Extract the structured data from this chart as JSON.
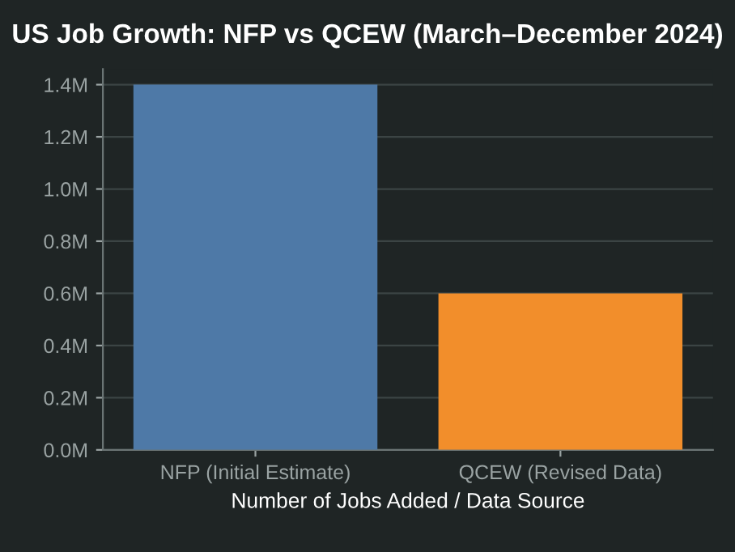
{
  "chart_data": {
    "type": "bar",
    "title": "US Job Growth: NFP vs QCEW (March–December 2024)",
    "xlabel": "Number of Jobs Added / Data Source",
    "categories": [
      "NFP (Initial Estimate)",
      "QCEW (Revised Data)"
    ],
    "values": [
      1.4,
      0.6
    ],
    "colors": [
      "#4e79a7",
      "#f28e2b"
    ],
    "ylim": [
      0,
      1.46
    ],
    "yticks": [
      {
        "value": 0,
        "label": "0.0M"
      },
      {
        "value": 0.2,
        "label": "0.2M"
      },
      {
        "value": 0.4,
        "label": "0.4M"
      },
      {
        "value": 0.6,
        "label": "0.6M"
      },
      {
        "value": 0.8,
        "label": "0.8M"
      },
      {
        "value": 1.0,
        "label": "1.0M"
      },
      {
        "value": 1.2,
        "label": "1.2M"
      },
      {
        "value": 1.4,
        "label": "1.4M"
      }
    ],
    "grid": "y",
    "legend": false
  }
}
